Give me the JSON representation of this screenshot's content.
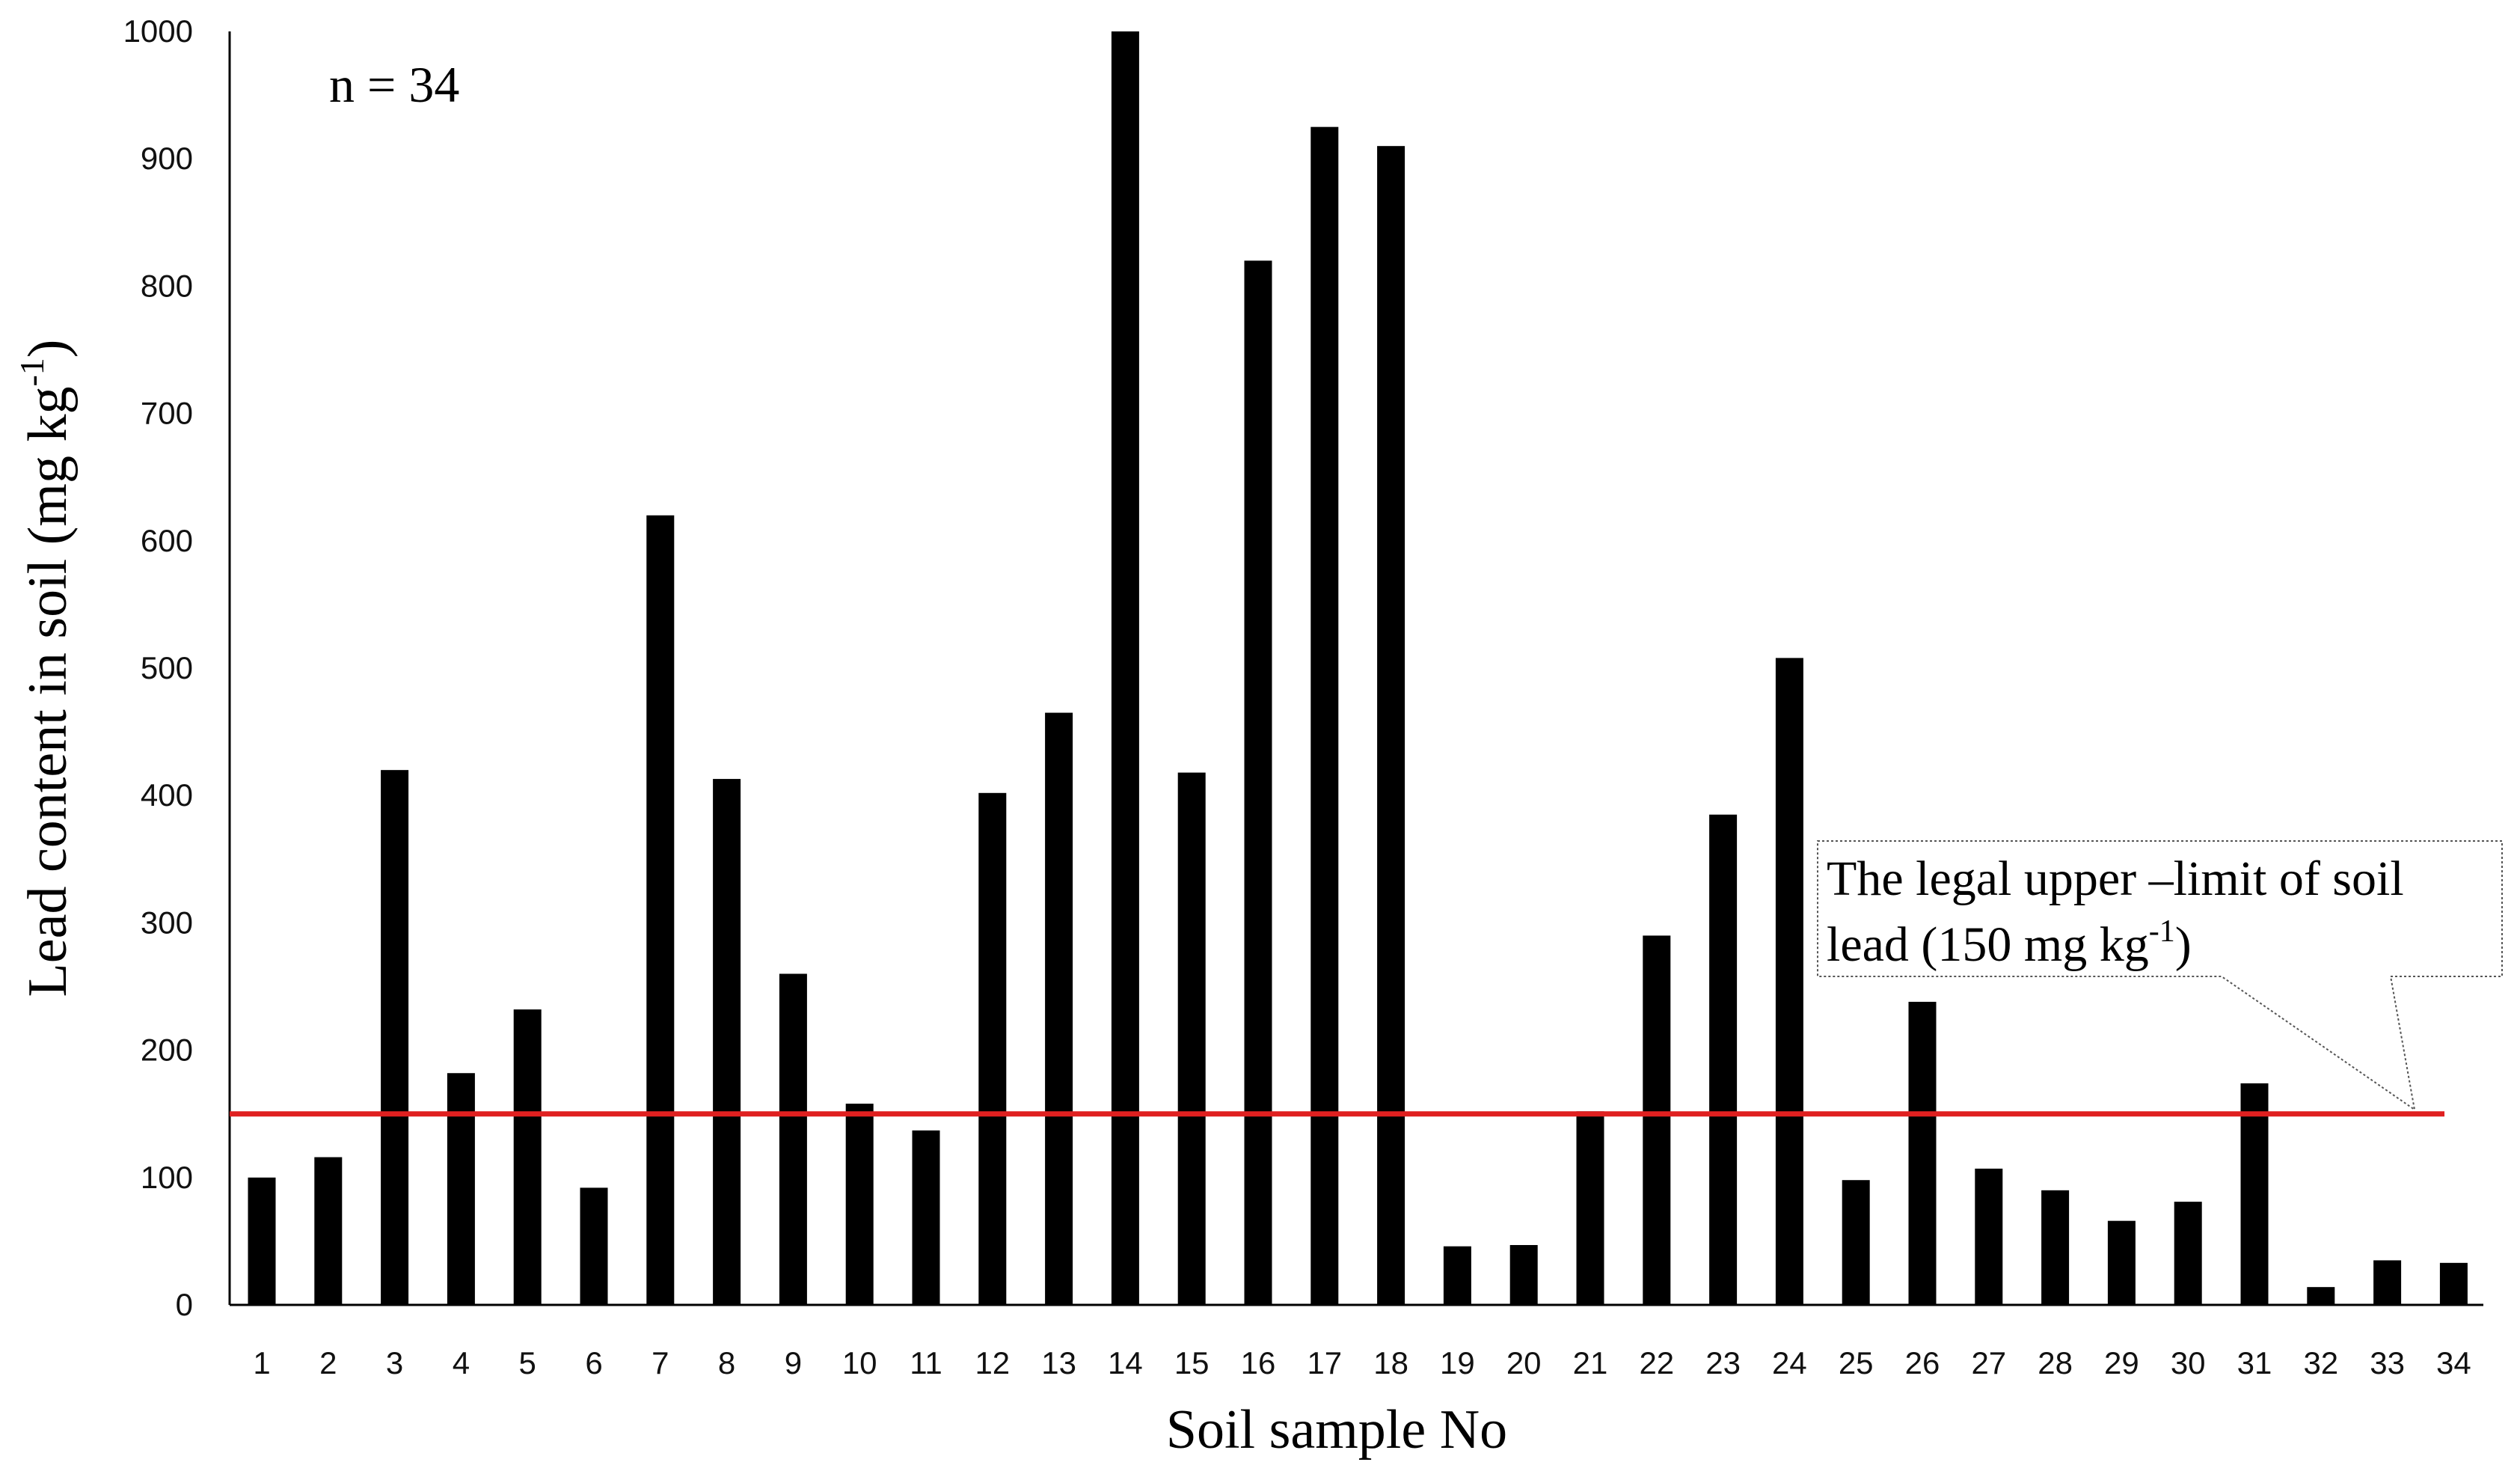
{
  "chart_data": {
    "type": "bar",
    "categories": [
      "1",
      "2",
      "3",
      "4",
      "5",
      "6",
      "7",
      "8",
      "9",
      "10",
      "11",
      "12",
      "13",
      "14",
      "15",
      "16",
      "17",
      "18",
      "19",
      "20",
      "21",
      "22",
      "23",
      "24",
      "25",
      "26",
      "27",
      "28",
      "29",
      "30",
      "31",
      "32",
      "33",
      "34"
    ],
    "values": [
      100,
      116,
      420,
      182,
      232,
      92,
      620,
      413,
      260,
      158,
      137,
      402,
      465,
      1000,
      418,
      820,
      925,
      910,
      46,
      47,
      152,
      290,
      385,
      508,
      98,
      238,
      107,
      90,
      66,
      81,
      174,
      14,
      35,
      33
    ],
    "xlabel": "Soil sample No",
    "ylabel": "Lead content in soil (mg kg",
    "ylabel_sup": "-1",
    "ylabel_end": ")",
    "ylim": [
      0,
      1000
    ],
    "yticks": [
      0,
      100,
      200,
      300,
      400,
      500,
      600,
      700,
      800,
      900,
      1000
    ],
    "grid": false,
    "annotation_n": "n = 34",
    "limit_value": 150,
    "limit_color": "#e02020",
    "bar_color": "#000000",
    "callout_line1": "The legal upper –limit of soil",
    "callout_line2": "lead (150 mg kg",
    "callout_sup": "-1",
    "callout_end": ")"
  }
}
